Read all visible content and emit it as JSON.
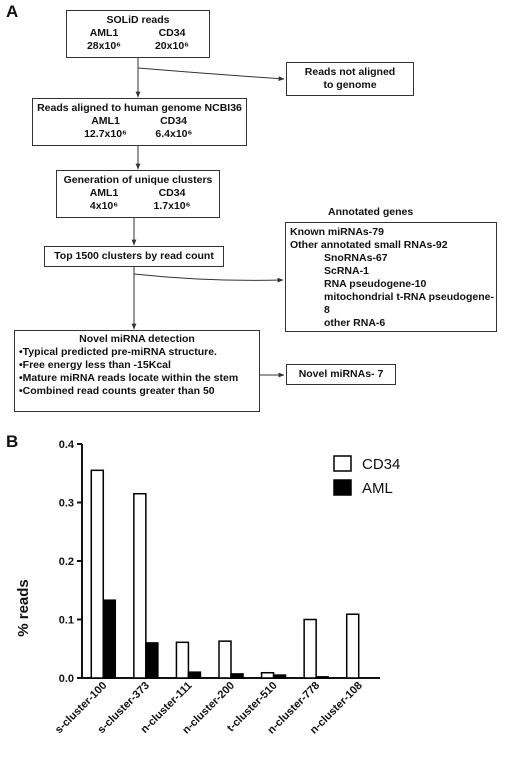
{
  "panel_a": {
    "label": "A",
    "box1": {
      "title": "SOLiD reads",
      "col1": "AML1",
      "col2": "CD34",
      "val1": "28x10⁶",
      "val2": "20x10⁶"
    },
    "box_unaligned": {
      "line1": "Reads not aligned",
      "line2": "to genome"
    },
    "box2": {
      "title": "Reads aligned to human genome  NCBI36",
      "col1": "AML1",
      "col2": "CD34",
      "val1": "12.7x10⁶",
      "val2": "6.4x10⁶"
    },
    "box3": {
      "title": "Generation of unique clusters",
      "col1": "AML1",
      "col2": "CD34",
      "val1": "4x10⁶",
      "val2": "1.7x10⁶"
    },
    "box4": {
      "title": "Top 1500 clusters by read count"
    },
    "annotated_header": "Annotated genes",
    "annotated": {
      "known": "Known miRNAs-79",
      "other": "Other annotated small RNAs-92",
      "sub": [
        "SnoRNAs-67",
        "ScRNA-1",
        "RNA pseudogene-10",
        "mitochondrial  t-RNA pseudogene-8",
        "other RNA-6"
      ]
    },
    "box5": {
      "title": "Novel miRNA detection",
      "bullets": [
        "•Typical predicted pre-miRNA structure.",
        "•Free energy less than -15Kcal",
        "•Mature miRNA reads locate within the stem",
        "•Combined read counts greater than 50"
      ]
    },
    "box_novel": "Novel miRNAs- 7"
  },
  "panel_b": {
    "label": "B"
  },
  "chart_data": {
    "type": "bar",
    "categories": [
      "s-cluster-100",
      "s-cluster-373",
      "n-cluster-111",
      "n-cluster-200",
      "t-cluster-510",
      "n-cluster-778",
      "n-cluster-108"
    ],
    "series": [
      {
        "name": "CD34",
        "values": [
          0.355,
          0.315,
          0.061,
          0.063,
          0.009,
          0.1,
          0.109
        ],
        "color": "#ffffff"
      },
      {
        "name": "AML",
        "values": [
          0.133,
          0.06,
          0.01,
          0.007,
          0.005,
          0.002,
          0.0
        ],
        "color": "#000000"
      }
    ],
    "ylabel": "% reads",
    "xlabel": "",
    "ylim": [
      0,
      0.4
    ],
    "yticks": [
      "0.0",
      "0.1",
      "0.2",
      "0.3",
      "0.4"
    ],
    "legend_position": "top-right"
  }
}
